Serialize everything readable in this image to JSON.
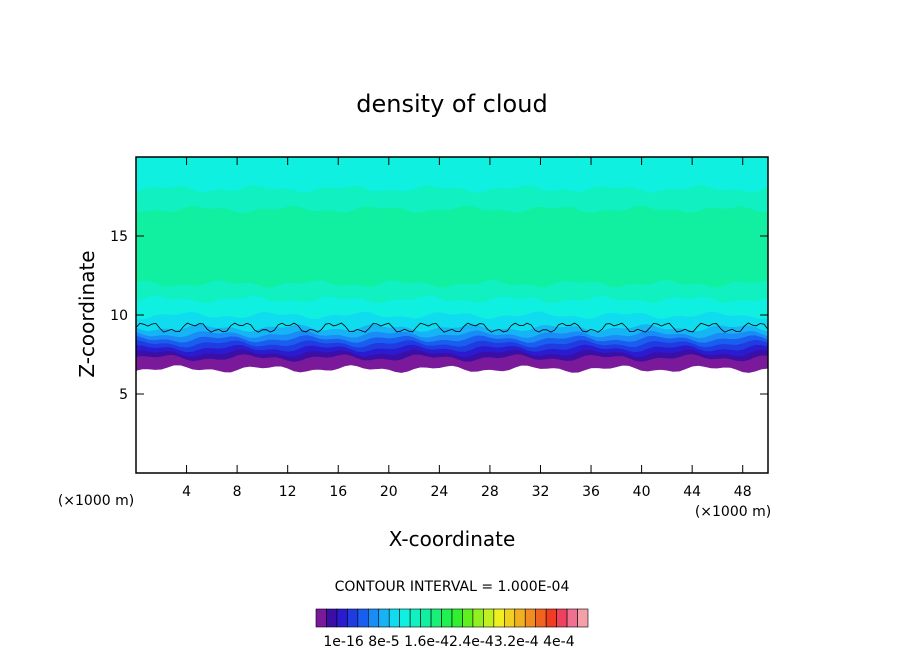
{
  "chart_data": {
    "type": "heatmap",
    "title": "density of cloud",
    "xlabel": "X-coordinate",
    "ylabel": "Z-coordinate",
    "x_unit_label": "(×1000 m)",
    "y_unit_label": "(×1000 m)",
    "xlim": [
      0,
      50
    ],
    "ylim": [
      0,
      20
    ],
    "x_ticks": [
      4,
      8,
      12,
      16,
      20,
      24,
      28,
      32,
      36,
      40,
      44,
      48
    ],
    "y_ticks": [
      5,
      10,
      15
    ],
    "contour_interval_text": "CONTOUR INTERVAL = 1.000E-04",
    "colorbar": {
      "tick_labels": [
        "1e-16",
        "8e-5",
        "1.6e-4",
        "2.4e-4",
        "3.2e-4",
        "4e-4"
      ],
      "tick_label_text": "1e-16 8e-5 1.6e-42.4e-43.2e-4 4e-4",
      "colors": [
        "#7a1a9a",
        "#3b0fa6",
        "#2a1ad0",
        "#1e3ce0",
        "#1a5ef0",
        "#1a8cf5",
        "#16b4f5",
        "#10dcf0",
        "#10f0e0",
        "#10f0c0",
        "#10f0a0",
        "#18f07a",
        "#20f050",
        "#30f030",
        "#60f020",
        "#90f020",
        "#c0f020",
        "#f0f020",
        "#f0d020",
        "#f0b020",
        "#f08c20",
        "#f06420",
        "#f03c20",
        "#f04060",
        "#f07090",
        "#f4a0a8"
      ]
    },
    "bands": [
      {
        "z_from": 6.6,
        "z_to": 7.3,
        "color": "#7a1a9a"
      },
      {
        "z_from": 7.3,
        "z_to": 7.6,
        "color": "#3b0fa6"
      },
      {
        "z_from": 7.6,
        "z_to": 7.9,
        "color": "#2a1ad0"
      },
      {
        "z_from": 7.9,
        "z_to": 8.2,
        "color": "#1e3ce0"
      },
      {
        "z_from": 8.2,
        "z_to": 8.5,
        "color": "#1a5ef0"
      },
      {
        "z_from": 8.5,
        "z_to": 8.8,
        "color": "#1a8cf5"
      },
      {
        "z_from": 8.8,
        "z_to": 9.2,
        "color": "#16b4f5"
      },
      {
        "z_from": 9.2,
        "z_to": 10.0,
        "color": "#10dcf0"
      },
      {
        "z_from": 10.0,
        "z_to": 11.0,
        "color": "#10f0e0"
      },
      {
        "z_from": 11.0,
        "z_to": 12.0,
        "color": "#10f0c0"
      },
      {
        "z_from": 12.0,
        "z_to": 16.7,
        "color": "#10f0a0"
      },
      {
        "z_from": 16.7,
        "z_to": 18.0,
        "color": "#10f0c0"
      },
      {
        "z_from": 18.0,
        "z_to": 20.0,
        "color": "#10f0e0"
      }
    ],
    "contour_line_z": 9.2
  }
}
